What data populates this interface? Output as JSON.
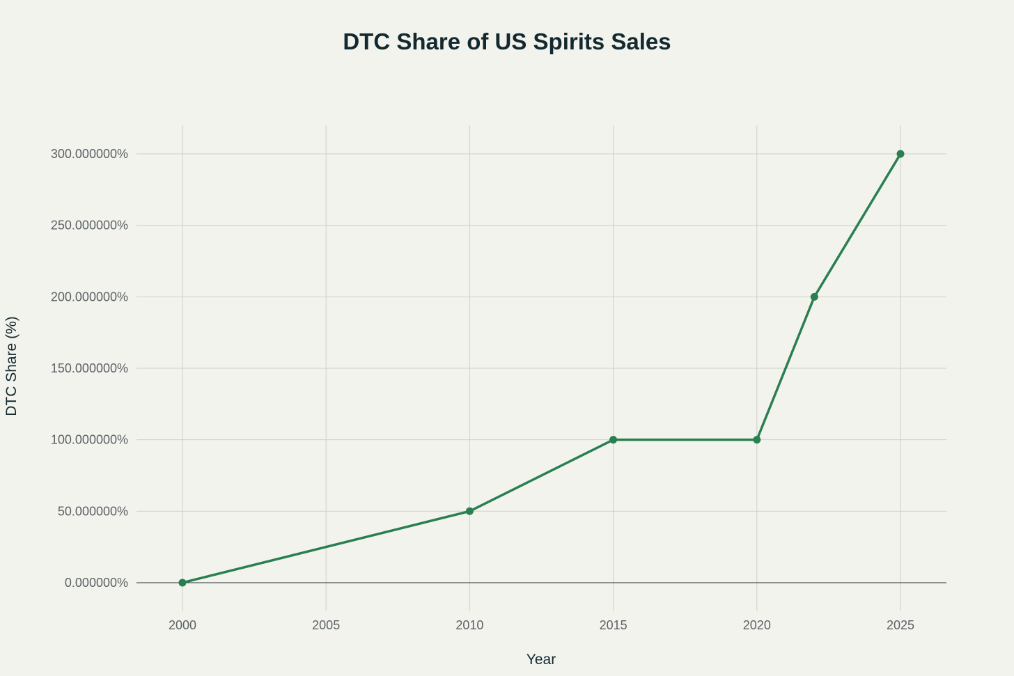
{
  "chart_data": {
    "type": "line",
    "title": "DTC Share of US Spirits Sales",
    "xlabel": "Year",
    "ylabel": "DTC Share (%)",
    "x": [
      2000,
      2010,
      2015,
      2020,
      2022,
      2025
    ],
    "series": [
      {
        "name": "DTC Share",
        "values": [
          0,
          50,
          100,
          100,
          200,
          300
        ],
        "color": "#2a7f50"
      }
    ],
    "xlim": [
      1998.4,
      2026.6
    ],
    "ylim": [
      -20,
      320
    ],
    "x_ticks": [
      2000,
      2005,
      2010,
      2015,
      2020,
      2025
    ],
    "x_tick_labels": [
      "2000",
      "2005",
      "2010",
      "2015",
      "2020",
      "2025"
    ],
    "y_ticks": [
      0,
      50,
      100,
      150,
      200,
      250,
      300
    ],
    "y_tick_labels": [
      "0.000000%",
      "50.000000%",
      "100.000000%",
      "150.000000%",
      "200.000000%",
      "250.000000%",
      "300.000000%"
    ],
    "grid": true,
    "legend": "none"
  }
}
